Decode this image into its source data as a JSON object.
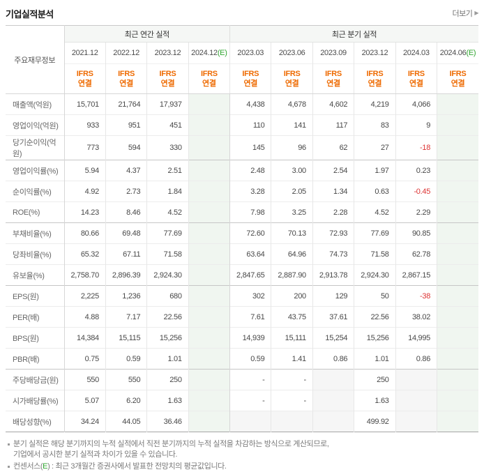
{
  "header": {
    "title": "기업실적분석",
    "more_label": "더보기",
    "more_arrow": "▶"
  },
  "table": {
    "corner_label": "주요재무정보",
    "group_headers": [
      {
        "label": "최근 연간 실적",
        "span": 4
      },
      {
        "label": "최근 분기 실적",
        "span": 6
      }
    ],
    "standard_line1": "IFRS",
    "standard_line2": "연결",
    "columns": [
      {
        "period": "2021.12",
        "suffix": "",
        "estimate": false
      },
      {
        "period": "2022.12",
        "suffix": "",
        "estimate": false
      },
      {
        "period": "2023.12",
        "suffix": "",
        "estimate": false
      },
      {
        "period": "2024.12",
        "suffix": "(E)",
        "estimate": true
      },
      {
        "period": "2023.03",
        "suffix": "",
        "estimate": false
      },
      {
        "period": "2023.06",
        "suffix": "",
        "estimate": false
      },
      {
        "period": "2023.09",
        "suffix": "",
        "estimate": false
      },
      {
        "period": "2023.12",
        "suffix": "",
        "estimate": false
      },
      {
        "period": "2024.03",
        "suffix": "",
        "estimate": false
      },
      {
        "period": "2024.06",
        "suffix": "(E)",
        "estimate": true
      }
    ],
    "rows": [
      {
        "label": "매출액(억원)",
        "group_start": false,
        "values": [
          "15,701",
          "21,764",
          "17,937",
          "",
          "4,438",
          "4,678",
          "4,602",
          "4,219",
          "4,066",
          ""
        ]
      },
      {
        "label": "영업이익(억원)",
        "group_start": false,
        "values": [
          "933",
          "951",
          "451",
          "",
          "110",
          "141",
          "117",
          "83",
          "9",
          ""
        ]
      },
      {
        "label": "당기순이익(억원)",
        "group_start": false,
        "values": [
          "773",
          "594",
          "330",
          "",
          "145",
          "96",
          "62",
          "27",
          "-18",
          ""
        ]
      },
      {
        "label": "영업이익률(%)",
        "group_start": true,
        "values": [
          "5.94",
          "4.37",
          "2.51",
          "",
          "2.48",
          "3.00",
          "2.54",
          "1.97",
          "0.23",
          ""
        ]
      },
      {
        "label": "순이익률(%)",
        "group_start": false,
        "values": [
          "4.92",
          "2.73",
          "1.84",
          "",
          "3.28",
          "2.05",
          "1.34",
          "0.63",
          "-0.45",
          ""
        ]
      },
      {
        "label": "ROE(%)",
        "group_start": false,
        "values": [
          "14.23",
          "8.46",
          "4.52",
          "",
          "7.98",
          "3.25",
          "2.28",
          "4.52",
          "2.29",
          ""
        ]
      },
      {
        "label": "부채비율(%)",
        "group_start": true,
        "values": [
          "80.66",
          "69.48",
          "77.69",
          "",
          "72.60",
          "70.13",
          "72.93",
          "77.69",
          "90.85",
          ""
        ]
      },
      {
        "label": "당좌비율(%)",
        "group_start": false,
        "values": [
          "65.32",
          "67.11",
          "71.58",
          "",
          "63.64",
          "64.96",
          "74.73",
          "71.58",
          "62.78",
          ""
        ]
      },
      {
        "label": "유보율(%)",
        "group_start": false,
        "values": [
          "2,758.70",
          "2,896.39",
          "2,924.30",
          "",
          "2,847.65",
          "2,887.90",
          "2,913.78",
          "2,924.30",
          "2,867.15",
          ""
        ]
      },
      {
        "label": "EPS(원)",
        "group_start": true,
        "values": [
          "2,225",
          "1,236",
          "680",
          "",
          "302",
          "200",
          "129",
          "50",
          "-38",
          ""
        ]
      },
      {
        "label": "PER(배)",
        "group_start": false,
        "values": [
          "4.88",
          "7.17",
          "22.56",
          "",
          "7.61",
          "43.75",
          "37.61",
          "22.56",
          "38.02",
          ""
        ]
      },
      {
        "label": "BPS(원)",
        "group_start": false,
        "values": [
          "14,384",
          "15,115",
          "15,256",
          "",
          "14,939",
          "15,111",
          "15,254",
          "15,256",
          "14,995",
          ""
        ]
      },
      {
        "label": "PBR(배)",
        "group_start": false,
        "values": [
          "0.75",
          "0.59",
          "1.01",
          "",
          "0.59",
          "1.41",
          "0.86",
          "1.01",
          "0.86",
          ""
        ]
      },
      {
        "label": "주당배당금(원)",
        "group_start": true,
        "values": [
          "550",
          "550",
          "250",
          "",
          "-",
          "-",
          "",
          "250",
          "",
          ""
        ]
      },
      {
        "label": "시가배당률(%)",
        "group_start": false,
        "values": [
          "5.07",
          "6.20",
          "1.63",
          "",
          "-",
          "-",
          "",
          "1.63",
          "",
          ""
        ]
      },
      {
        "label": "배당성향(%)",
        "group_start": false,
        "values": [
          "34.24",
          "44.05",
          "36.46",
          "",
          "",
          "",
          "",
          "499.92",
          "",
          ""
        ]
      }
    ],
    "colors": {
      "accent_orange": "#ee6a00",
      "estimate_green": "#2fa52f",
      "negative_red": "#dd3333",
      "estimate_column_bg": "#f0f6f0",
      "empty_cell_bg": "#f6f6f6",
      "group_header_bg": "#f5f7f5"
    }
  },
  "footnotes": {
    "note1_line1": "분기 실적은 해당 분기까지의 누적 실적에서 직전 분기까지의 누적 실적을 차감하는 방식으로 계산되므로,",
    "note1_line2": "기업에서 공시한 분기 실적과 차이가 있을 수 있습니다.",
    "note2_prefix": "컨센서스(",
    "note2_e": "E",
    "note2_rest": ") : 최근 3개월간 증권사에서 발표한 전망치의 평균값입니다."
  }
}
